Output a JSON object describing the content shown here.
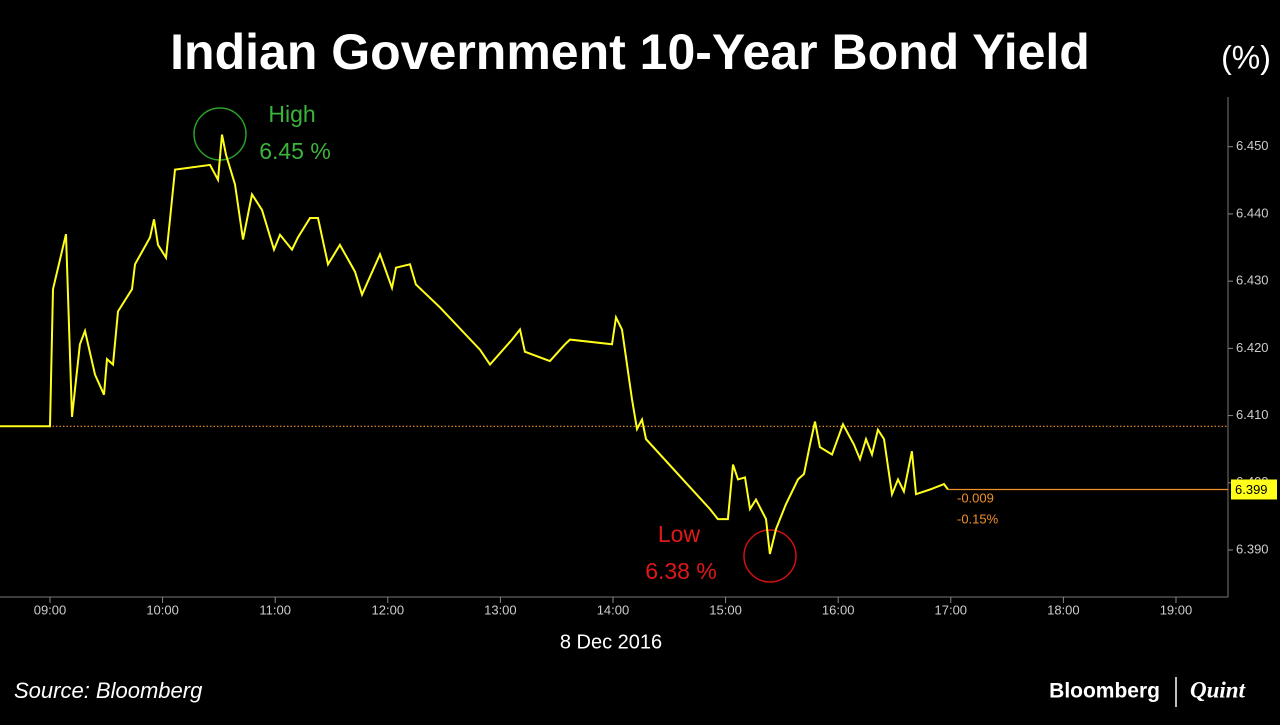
{
  "chart_data": {
    "type": "line",
    "title": "Indian Government 10-Year Bond Yield",
    "unit_label": "(%)",
    "x_label": "8 Dec 2016",
    "source": "Source: Bloomberg",
    "brand": [
      "Bloomberg",
      "Quint"
    ],
    "x": [
      8.556,
      9.0,
      9.027,
      9.142,
      9.195,
      9.266,
      9.311,
      9.4,
      9.48,
      9.506,
      9.56,
      9.604,
      9.728,
      9.755,
      9.888,
      9.924,
      9.959,
      10.03,
      10.066,
      10.11,
      10.421,
      10.492,
      10.528,
      10.563,
      10.643,
      10.714,
      10.794,
      10.883,
      10.989,
      11.043,
      11.149,
      11.202,
      11.309,
      11.38,
      11.469,
      11.575,
      11.709,
      11.771,
      11.931,
      12.037,
      12.073,
      12.197,
      12.25,
      12.464,
      12.819,
      12.908,
      13.103,
      13.174,
      13.218,
      13.44,
      13.574,
      13.618,
      13.991,
      14.027,
      14.08,
      14.169,
      14.213,
      14.258,
      14.293,
      14.861,
      14.932,
      15.021,
      15.066,
      15.11,
      15.172,
      15.217,
      15.27,
      15.359,
      15.394,
      15.448,
      15.536,
      15.643,
      15.696,
      15.75,
      15.794,
      15.838,
      15.945,
      16.043,
      16.14,
      16.194,
      16.247,
      16.3,
      16.353,
      16.407,
      16.478,
      16.531,
      16.584,
      16.655,
      16.691,
      16.815,
      16.94,
      16.975
    ],
    "series": [
      {
        "color": "#ffff1a",
        "values": [
          6.4084,
          6.4084,
          6.4288,
          6.437,
          6.4098,
          6.4206,
          6.4226,
          6.4161,
          6.4131,
          6.4184,
          6.4176,
          6.4255,
          6.4288,
          6.4325,
          6.4365,
          6.4392,
          6.4354,
          6.4335,
          6.4392,
          6.4466,
          6.4473,
          6.4451,
          6.4518,
          6.4488,
          6.4444,
          6.4362,
          6.4429,
          6.4406,
          6.4347,
          6.4369,
          6.4347,
          6.4365,
          6.4394,
          6.4394,
          6.4325,
          6.4354,
          6.4314,
          6.428,
          6.434,
          6.429,
          6.432,
          6.4325,
          6.4295,
          6.4261,
          6.4198,
          6.4176,
          6.4213,
          6.4228,
          6.4195,
          6.4181,
          6.4206,
          6.4213,
          6.4206,
          6.4246,
          6.4228,
          6.4124,
          6.408,
          6.4094,
          6.4065,
          6.3961,
          6.3946,
          6.3946,
          6.4027,
          6.4005,
          6.4008,
          6.3961,
          6.3975,
          6.3946,
          6.3894,
          6.3931,
          6.3968,
          6.4005,
          6.4013,
          6.4057,
          6.4091,
          6.4053,
          6.4042,
          6.4087,
          6.4057,
          6.4035,
          6.4065,
          6.4042,
          6.4079,
          6.4065,
          6.3983,
          6.4005,
          6.3987,
          6.4047,
          6.3983,
          6.399,
          6.3998,
          6.399
        ]
      }
    ],
    "xlim": [
      8.556,
      19.462
    ],
    "xticks": [
      {
        "value": 9,
        "label": "09:00"
      },
      {
        "value": 10,
        "label": "10:00"
      },
      {
        "value": 11,
        "label": "11:00"
      },
      {
        "value": 12,
        "label": "12:00"
      },
      {
        "value": 13,
        "label": "13:00"
      },
      {
        "value": 14,
        "label": "14:00"
      },
      {
        "value": 15,
        "label": "15:00"
      },
      {
        "value": 16,
        "label": "16:00"
      },
      {
        "value": 17,
        "label": "17:00"
      },
      {
        "value": 18,
        "label": "18:00"
      },
      {
        "value": 19,
        "label": "19:00"
      }
    ],
    "ylim": [
      6.3833,
      6.4574
    ],
    "yticks": [
      {
        "value": 6.39,
        "label": "6.390"
      },
      {
        "value": 6.4,
        "label": "6.400"
      },
      {
        "value": 6.41,
        "label": "6.410"
      },
      {
        "value": 6.42,
        "label": "6.420"
      },
      {
        "value": 6.43,
        "label": "6.430"
      },
      {
        "value": 6.44,
        "label": "6.440"
      },
      {
        "value": 6.45,
        "label": "6.450"
      }
    ],
    "reference_line": 6.4084,
    "last_value": 6.399,
    "change_labels": [
      "-0.009",
      "-0.15%"
    ],
    "high_annotation": [
      "High",
      "6.45 %"
    ],
    "low_annotation": [
      "Low",
      "6.38 %"
    ]
  }
}
